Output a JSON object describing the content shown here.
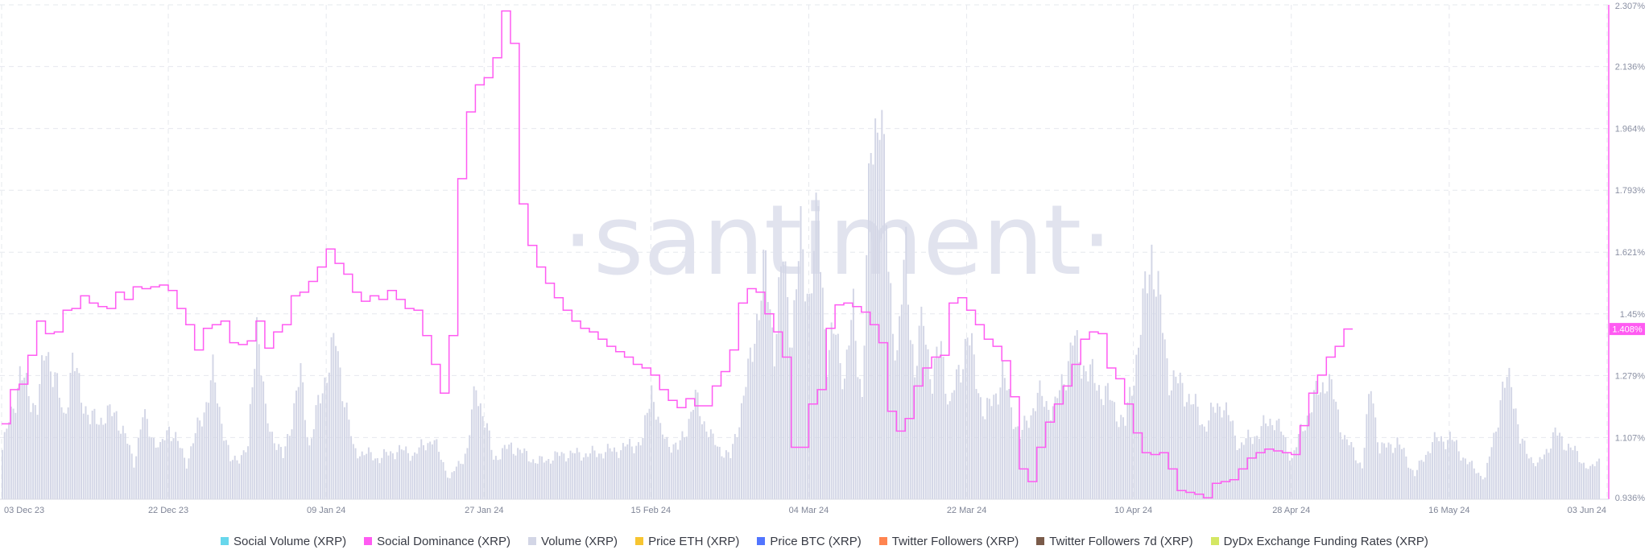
{
  "watermark": "·santiment·",
  "legend": [
    {
      "label": "Social Volume (XRP)",
      "color": "#68d7ec"
    },
    {
      "label": "Social Dominance (XRP)",
      "color": "#ff5bf2"
    },
    {
      "label": "Volume (XRP)",
      "color": "#d3d6e6"
    },
    {
      "label": "Price ETH (XRP)",
      "color": "#f7c531"
    },
    {
      "label": "Price BTC (XRP)",
      "color": "#5275ff"
    },
    {
      "label": "Twitter Followers (XRP)",
      "color": "#ff8450"
    },
    {
      "label": "Twitter Followers 7d (XRP)",
      "color": "#7a5b4a"
    },
    {
      "label": "DyDx Exchange Funding Rates (XRP)",
      "color": "#d4e763"
    }
  ],
  "chart_data": {
    "type": "line",
    "x_start": "2023-12-03",
    "x_end": "2024-06-03",
    "x_ticks": [
      "03 Dec 23",
      "22 Dec 23",
      "09 Jan 24",
      "27 Jan 24",
      "15 Feb 24",
      "04 Mar 24",
      "22 Mar 24",
      "10 Apr 24",
      "28 Apr 24",
      "16 May 24",
      "03 Jun 24"
    ],
    "y_right_ticks": [
      "0.936%",
      "1.107%",
      "1.279%",
      "1.45%",
      "1.621%",
      "1.793%",
      "1.964%",
      "2.136%",
      "2.307%"
    ],
    "y_right_range": [
      0.936,
      2.307
    ],
    "last_value_label": "1.408%",
    "grid": true,
    "series": [
      {
        "name": "Social Dominance (XRP)",
        "color": "#ff5bf2",
        "unit": "%",
        "points": [
          [
            "2023-12-03",
            1.145
          ],
          [
            "2023-12-04",
            1.24
          ],
          [
            "2023-12-05",
            1.255
          ],
          [
            "2023-12-06",
            1.335
          ],
          [
            "2023-12-07",
            1.43
          ],
          [
            "2023-12-08",
            1.395
          ],
          [
            "2023-12-09",
            1.4
          ],
          [
            "2023-12-10",
            1.46
          ],
          [
            "2023-12-11",
            1.465
          ],
          [
            "2023-12-12",
            1.5
          ],
          [
            "2023-12-13",
            1.48
          ],
          [
            "2023-12-14",
            1.47
          ],
          [
            "2023-12-15",
            1.465
          ],
          [
            "2023-12-16",
            1.51
          ],
          [
            "2023-12-17",
            1.49
          ],
          [
            "2023-12-18",
            1.525
          ],
          [
            "2023-12-19",
            1.52
          ],
          [
            "2023-12-20",
            1.525
          ],
          [
            "2023-12-21",
            1.53
          ],
          [
            "2023-12-22",
            1.515
          ],
          [
            "2023-12-23",
            1.465
          ],
          [
            "2023-12-24",
            1.42
          ],
          [
            "2023-12-25",
            1.35
          ],
          [
            "2023-12-26",
            1.41
          ],
          [
            "2023-12-27",
            1.42
          ],
          [
            "2023-12-28",
            1.43
          ],
          [
            "2023-12-29",
            1.37
          ],
          [
            "2023-12-30",
            1.365
          ],
          [
            "2023-12-31",
            1.375
          ],
          [
            "2024-01-01",
            1.43
          ],
          [
            "2024-01-02",
            1.355
          ],
          [
            "2024-01-03",
            1.4
          ],
          [
            "2024-01-04",
            1.42
          ],
          [
            "2024-01-05",
            1.5
          ],
          [
            "2024-01-06",
            1.51
          ],
          [
            "2024-01-07",
            1.54
          ],
          [
            "2024-01-08",
            1.58
          ],
          [
            "2024-01-09",
            1.63
          ],
          [
            "2024-01-10",
            1.59
          ],
          [
            "2024-01-11",
            1.56
          ],
          [
            "2024-01-12",
            1.51
          ],
          [
            "2024-01-13",
            1.485
          ],
          [
            "2024-01-14",
            1.5
          ],
          [
            "2024-01-15",
            1.49
          ],
          [
            "2024-01-16",
            1.515
          ],
          [
            "2024-01-17",
            1.49
          ],
          [
            "2024-01-18",
            1.465
          ],
          [
            "2024-01-19",
            1.46
          ],
          [
            "2024-01-20",
            1.39
          ],
          [
            "2024-01-21",
            1.31
          ],
          [
            "2024-01-22",
            1.23
          ],
          [
            "2024-01-23",
            1.39
          ],
          [
            "2024-01-24",
            1.825
          ],
          [
            "2024-01-25",
            2.01
          ],
          [
            "2024-01-26",
            2.085
          ],
          [
            "2024-01-27",
            2.105
          ],
          [
            "2024-01-28",
            2.16
          ],
          [
            "2024-01-29",
            2.29
          ],
          [
            "2024-01-30",
            2.2
          ],
          [
            "2024-01-31",
            1.755
          ],
          [
            "2024-02-01",
            1.64
          ],
          [
            "2024-02-02",
            1.58
          ],
          [
            "2024-02-03",
            1.535
          ],
          [
            "2024-02-04",
            1.495
          ],
          [
            "2024-02-05",
            1.46
          ],
          [
            "2024-02-06",
            1.43
          ],
          [
            "2024-02-07",
            1.41
          ],
          [
            "2024-02-08",
            1.4
          ],
          [
            "2024-02-09",
            1.38
          ],
          [
            "2024-02-10",
            1.36
          ],
          [
            "2024-02-11",
            1.345
          ],
          [
            "2024-02-12",
            1.33
          ],
          [
            "2024-02-13",
            1.31
          ],
          [
            "2024-02-14",
            1.3
          ],
          [
            "2024-02-15",
            1.28
          ],
          [
            "2024-02-16",
            1.24
          ],
          [
            "2024-02-17",
            1.21
          ],
          [
            "2024-02-18",
            1.19
          ],
          [
            "2024-02-19",
            1.215
          ],
          [
            "2024-02-20",
            1.195
          ],
          [
            "2024-02-21",
            1.195
          ],
          [
            "2024-02-22",
            1.25
          ],
          [
            "2024-02-23",
            1.29
          ],
          [
            "2024-02-24",
            1.35
          ],
          [
            "2024-02-25",
            1.48
          ],
          [
            "2024-02-26",
            1.52
          ],
          [
            "2024-02-27",
            1.51
          ],
          [
            "2024-02-28",
            1.45
          ],
          [
            "2024-02-29",
            1.4
          ],
          [
            "2024-03-01",
            1.33
          ],
          [
            "2024-03-02",
            1.08
          ],
          [
            "2024-03-03",
            1.08
          ],
          [
            "2024-03-04",
            1.2
          ],
          [
            "2024-03-05",
            1.24
          ],
          [
            "2024-03-06",
            1.41
          ],
          [
            "2024-03-07",
            1.475
          ],
          [
            "2024-03-08",
            1.48
          ],
          [
            "2024-03-09",
            1.47
          ],
          [
            "2024-03-10",
            1.455
          ],
          [
            "2024-03-11",
            1.42
          ],
          [
            "2024-03-12",
            1.37
          ],
          [
            "2024-03-13",
            1.18
          ],
          [
            "2024-03-14",
            1.125
          ],
          [
            "2024-03-15",
            1.16
          ],
          [
            "2024-03-16",
            1.25
          ],
          [
            "2024-03-17",
            1.3
          ],
          [
            "2024-03-18",
            1.33
          ],
          [
            "2024-03-19",
            1.335
          ],
          [
            "2024-03-20",
            1.48
          ],
          [
            "2024-03-21",
            1.495
          ],
          [
            "2024-03-22",
            1.46
          ],
          [
            "2024-03-23",
            1.42
          ],
          [
            "2024-03-24",
            1.38
          ],
          [
            "2024-03-25",
            1.36
          ],
          [
            "2024-03-26",
            1.32
          ],
          [
            "2024-03-27",
            1.22
          ],
          [
            "2024-03-28",
            1.02
          ],
          [
            "2024-03-29",
            0.985
          ],
          [
            "2024-03-30",
            1.08
          ],
          [
            "2024-03-31",
            1.15
          ],
          [
            "2024-04-01",
            1.2
          ],
          [
            "2024-04-02",
            1.25
          ],
          [
            "2024-04-03",
            1.31
          ],
          [
            "2024-04-04",
            1.38
          ],
          [
            "2024-04-05",
            1.4
          ],
          [
            "2024-04-06",
            1.395
          ],
          [
            "2024-04-07",
            1.3
          ],
          [
            "2024-04-08",
            1.27
          ],
          [
            "2024-04-09",
            1.2
          ],
          [
            "2024-04-10",
            1.12
          ],
          [
            "2024-04-11",
            1.065
          ],
          [
            "2024-04-12",
            1.06
          ],
          [
            "2024-04-13",
            1.065
          ],
          [
            "2024-04-14",
            1.02
          ],
          [
            "2024-04-15",
            0.96
          ],
          [
            "2024-04-16",
            0.955
          ],
          [
            "2024-04-17",
            0.95
          ],
          [
            "2024-04-18",
            0.94
          ],
          [
            "2024-04-19",
            0.98
          ],
          [
            "2024-04-20",
            0.985
          ],
          [
            "2024-04-21",
            0.99
          ],
          [
            "2024-04-22",
            1.02
          ],
          [
            "2024-04-23",
            1.05
          ],
          [
            "2024-04-24",
            1.065
          ],
          [
            "2024-04-25",
            1.075
          ],
          [
            "2024-04-26",
            1.07
          ],
          [
            "2024-04-27",
            1.065
          ],
          [
            "2024-04-28",
            1.06
          ],
          [
            "2024-04-29",
            1.14
          ],
          [
            "2024-04-30",
            1.23
          ],
          [
            "2024-05-01",
            1.28
          ],
          [
            "2024-05-02",
            1.33
          ],
          [
            "2024-05-03",
            1.36
          ],
          [
            "2024-05-04",
            1.408
          ]
        ]
      },
      {
        "name": "Volume (XRP)",
        "color": "#d3d6e6",
        "type": "bar",
        "scale": "relative",
        "keyframes": [
          [
            "2023-12-03",
            0.12
          ],
          [
            "2023-12-05",
            0.3
          ],
          [
            "2023-12-07",
            0.22
          ],
          [
            "2023-12-08",
            0.38
          ],
          [
            "2023-12-10",
            0.2
          ],
          [
            "2023-12-11",
            0.33
          ],
          [
            "2023-12-13",
            0.19
          ],
          [
            "2023-12-16",
            0.21
          ],
          [
            "2023-12-18",
            0.09
          ],
          [
            "2023-12-19",
            0.2
          ],
          [
            "2023-12-21",
            0.12
          ],
          [
            "2023-12-22",
            0.18
          ],
          [
            "2023-12-24",
            0.09
          ],
          [
            "2023-12-26",
            0.22
          ],
          [
            "2023-12-27",
            0.3
          ],
          [
            "2023-12-29",
            0.09
          ],
          [
            "2023-12-31",
            0.12
          ],
          [
            "2024-01-01",
            0.45
          ],
          [
            "2024-01-02",
            0.2
          ],
          [
            "2024-01-04",
            0.1
          ],
          [
            "2024-01-06",
            0.3
          ],
          [
            "2024-01-07",
            0.13
          ],
          [
            "2024-01-09",
            0.32
          ],
          [
            "2024-01-10",
            0.38
          ],
          [
            "2024-01-12",
            0.12
          ],
          [
            "2024-01-15",
            0.1
          ],
          [
            "2024-01-17",
            0.12
          ],
          [
            "2024-01-19",
            0.11
          ],
          [
            "2024-01-21",
            0.15
          ],
          [
            "2024-01-23",
            0.05
          ],
          [
            "2024-01-25",
            0.12
          ],
          [
            "2024-01-26",
            0.28
          ],
          [
            "2024-01-28",
            0.1
          ],
          [
            "2024-01-30",
            0.13
          ],
          [
            "2024-02-02",
            0.09
          ],
          [
            "2024-02-05",
            0.11
          ],
          [
            "2024-02-08",
            0.11
          ],
          [
            "2024-02-11",
            0.12
          ],
          [
            "2024-02-14",
            0.14
          ],
          [
            "2024-02-15",
            0.28
          ],
          [
            "2024-02-16",
            0.16
          ],
          [
            "2024-02-18",
            0.12
          ],
          [
            "2024-02-20",
            0.24
          ],
          [
            "2024-02-22",
            0.14
          ],
          [
            "2024-02-24",
            0.1
          ],
          [
            "2024-02-26",
            0.3
          ],
          [
            "2024-02-27",
            0.45
          ],
          [
            "2024-02-28",
            0.55
          ],
          [
            "2024-02-29",
            0.38
          ],
          [
            "2024-03-01",
            0.58
          ],
          [
            "2024-03-02",
            0.4
          ],
          [
            "2024-03-03",
            0.62
          ],
          [
            "2024-03-04",
            0.5
          ],
          [
            "2024-03-05",
            0.68
          ],
          [
            "2024-03-06",
            0.35
          ],
          [
            "2024-03-07",
            0.4
          ],
          [
            "2024-03-08",
            0.3
          ],
          [
            "2024-03-09",
            0.45
          ],
          [
            "2024-03-10",
            0.25
          ],
          [
            "2024-03-11",
            0.85
          ],
          [
            "2024-03-12",
            1.0
          ],
          [
            "2024-03-13",
            0.55
          ],
          [
            "2024-03-14",
            0.35
          ],
          [
            "2024-03-15",
            0.6
          ],
          [
            "2024-03-16",
            0.3
          ],
          [
            "2024-03-17",
            0.45
          ],
          [
            "2024-03-18",
            0.28
          ],
          [
            "2024-03-19",
            0.38
          ],
          [
            "2024-03-20",
            0.22
          ],
          [
            "2024-03-22",
            0.4
          ],
          [
            "2024-03-24",
            0.2
          ],
          [
            "2024-03-26",
            0.3
          ],
          [
            "2024-03-28",
            0.15
          ],
          [
            "2024-03-30",
            0.25
          ],
          [
            "2024-04-01",
            0.22
          ],
          [
            "2024-04-03",
            0.38
          ],
          [
            "2024-04-05",
            0.3
          ],
          [
            "2024-04-07",
            0.25
          ],
          [
            "2024-04-09",
            0.18
          ],
          [
            "2024-04-11",
            0.45
          ],
          [
            "2024-04-12",
            0.62
          ],
          [
            "2024-04-13",
            0.45
          ],
          [
            "2024-04-14",
            0.3
          ],
          [
            "2024-04-16",
            0.26
          ],
          [
            "2024-04-18",
            0.18
          ],
          [
            "2024-04-20",
            0.24
          ],
          [
            "2024-04-22",
            0.13
          ],
          [
            "2024-04-24",
            0.16
          ],
          [
            "2024-04-26",
            0.2
          ],
          [
            "2024-04-28",
            0.1
          ],
          [
            "2024-04-30",
            0.22
          ],
          [
            "2024-05-02",
            0.3
          ],
          [
            "2024-05-04",
            0.15
          ],
          [
            "2024-05-06",
            0.08
          ],
          [
            "2024-05-07",
            0.28
          ],
          [
            "2024-05-08",
            0.12
          ],
          [
            "2024-05-10",
            0.14
          ],
          [
            "2024-05-12",
            0.06
          ],
          [
            "2024-05-14",
            0.14
          ],
          [
            "2024-05-16",
            0.15
          ],
          [
            "2024-05-18",
            0.09
          ],
          [
            "2024-05-20",
            0.05
          ],
          [
            "2024-05-22",
            0.26
          ],
          [
            "2024-05-23",
            0.3
          ],
          [
            "2024-05-24",
            0.14
          ],
          [
            "2024-05-26",
            0.08
          ],
          [
            "2024-05-28",
            0.16
          ],
          [
            "2024-05-30",
            0.12
          ],
          [
            "2024-06-01",
            0.07
          ],
          [
            "2024-06-02",
            0.1
          ]
        ]
      }
    ]
  }
}
